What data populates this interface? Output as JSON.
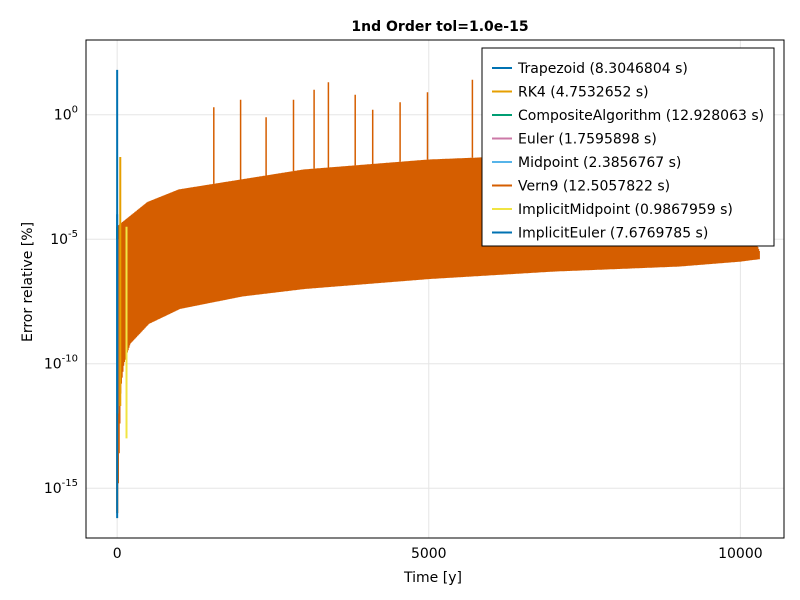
{
  "chart_data": {
    "type": "line",
    "title": "1nd Order tol=1.0e-15",
    "xlabel": "Time [y]",
    "ylabel": "Error relative [%]",
    "xlim": [
      -500,
      10700
    ],
    "ylim_log10": [
      -17,
      3
    ],
    "y_scale": "log10",
    "grid": true,
    "legend_position": "top-right",
    "x_ticks": [
      {
        "value": 0,
        "label": "0"
      },
      {
        "value": 5000,
        "label": "5000"
      },
      {
        "value": 10000,
        "label": "10000"
      }
    ],
    "y_ticks": [
      {
        "exp": 0,
        "label_base": "10",
        "label_exp": "0"
      },
      {
        "exp": -5,
        "label_base": "10",
        "label_exp": "-5"
      },
      {
        "exp": -10,
        "label_base": "10",
        "label_exp": "-10"
      },
      {
        "exp": -15,
        "label_base": "10",
        "label_exp": "-15"
      }
    ],
    "series": [
      {
        "name": "Trapezoid (8.3046804 s)",
        "color": "#0072b2",
        "peak_x": 0,
        "peak_log10": 1.8,
        "min_log10": -16.2
      },
      {
        "name": "RK4 (4.7532652 s)",
        "color": "#e69f00",
        "peak_x": 50,
        "peak_log10": -1.7,
        "min_log10": -11.7
      },
      {
        "name": "CompositeAlgorithm (12.928063 s)",
        "color": "#009e73",
        "peak_x": 0,
        "peak_log10": -4.5,
        "min_log10": -12.0
      },
      {
        "name": "Euler (1.7595898 s)",
        "color": "#cc79a7",
        "peak_x": 0,
        "peak_log10": -5.0,
        "min_log10": -12.0
      },
      {
        "name": "Midpoint (2.3856767 s)",
        "color": "#56b4e9",
        "peak_x": 0,
        "peak_log10": -5.0,
        "min_log10": -12.0
      },
      {
        "name": "Vern9 (12.5057822 s)",
        "color": "#d55e00",
        "peak_x": 5700,
        "peak_log10": 1.4,
        "min_log10": -16.0
      },
      {
        "name": "ImplicitMidpoint (0.9867959 s)",
        "color": "#f0e442",
        "peak_x": 150,
        "peak_log10": -4.5,
        "min_log10": -13.0
      },
      {
        "name": "ImplicitEuler (7.6769785 s)",
        "color": "#0072b2",
        "peak_x": 0,
        "peak_log10": -4.0,
        "min_log10": -12.0
      }
    ],
    "envelope": {
      "lower_points": [
        {
          "x": 0,
          "log10": -16.0
        },
        {
          "x": 50,
          "log10": -11.0
        },
        {
          "x": 100,
          "log10": -10.0
        },
        {
          "x": 200,
          "log10": -9.2
        },
        {
          "x": 500,
          "log10": -8.4
        },
        {
          "x": 1000,
          "log10": -7.8
        },
        {
          "x": 2000,
          "log10": -7.3
        },
        {
          "x": 3000,
          "log10": -7.0
        },
        {
          "x": 4000,
          "log10": -6.8
        },
        {
          "x": 5000,
          "log10": -6.6
        },
        {
          "x": 6000,
          "log10": -6.45
        },
        {
          "x": 7000,
          "log10": -6.3
        },
        {
          "x": 8000,
          "log10": -6.2
        },
        {
          "x": 9000,
          "log10": -6.1
        },
        {
          "x": 10000,
          "log10": -5.9
        },
        {
          "x": 10300,
          "log10": -5.8
        }
      ],
      "upper_points": [
        {
          "x": 0,
          "log10": -4.5
        },
        {
          "x": 500,
          "log10": -3.5
        },
        {
          "x": 1000,
          "log10": -3.0
        },
        {
          "x": 3000,
          "log10": -2.2
        },
        {
          "x": 5000,
          "log10": -1.8
        },
        {
          "x": 7000,
          "log10": -1.6
        },
        {
          "x": 9000,
          "log10": -1.7
        },
        {
          "x": 10000,
          "log10": -3.5
        },
        {
          "x": 10300,
          "log10": -5.5
        }
      ],
      "spike_tops": [
        {
          "x": 1550,
          "log10": 0.3
        },
        {
          "x": 1980,
          "log10": 0.6
        },
        {
          "x": 2390,
          "log10": -0.1
        },
        {
          "x": 2830,
          "log10": 0.6
        },
        {
          "x": 3160,
          "log10": 1.0
        },
        {
          "x": 3390,
          "log10": 1.3
        },
        {
          "x": 3820,
          "log10": 0.8
        },
        {
          "x": 4100,
          "log10": 0.2
        },
        {
          "x": 4540,
          "log10": 0.5
        },
        {
          "x": 4980,
          "log10": 0.9
        },
        {
          "x": 5700,
          "log10": 1.4
        },
        {
          "x": 6100,
          "log10": 0.9
        },
        {
          "x": 6700,
          "log10": 0.3
        },
        {
          "x": 7200,
          "log10": 0.6
        },
        {
          "x": 7600,
          "log10": 0.3
        },
        {
          "x": 8000,
          "log10": 0.2
        }
      ]
    }
  }
}
